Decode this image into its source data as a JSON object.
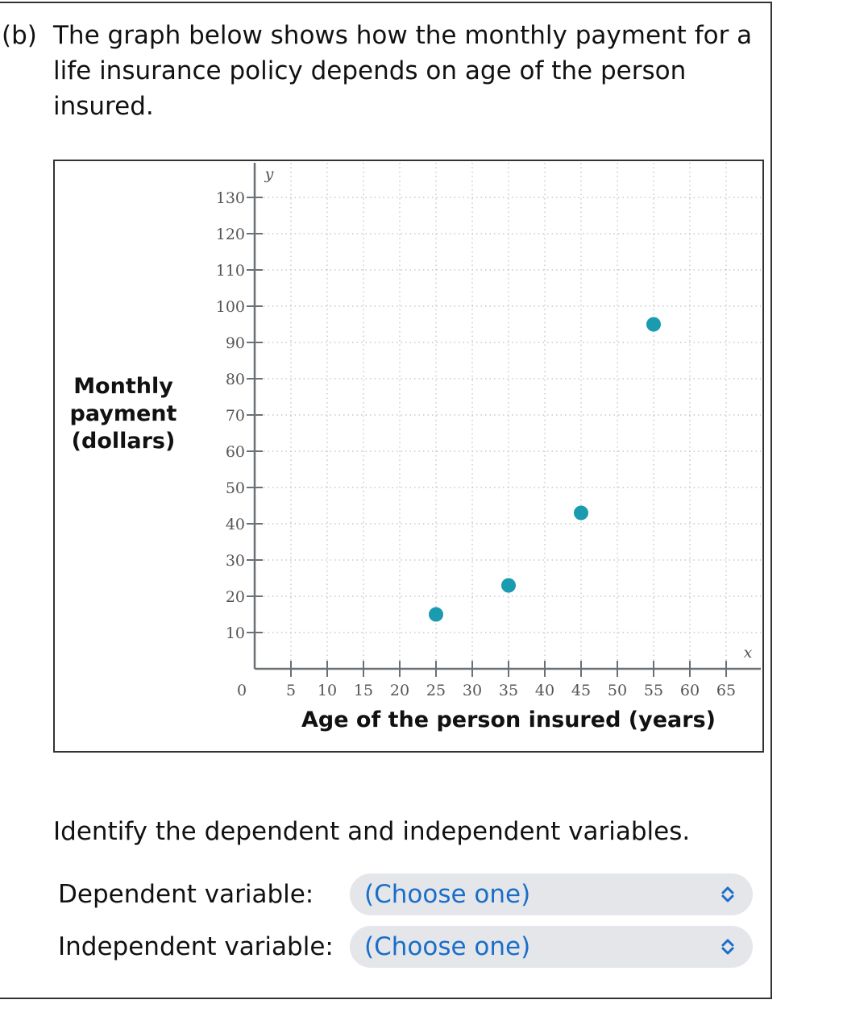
{
  "question": {
    "label": "(b)",
    "text": "The graph below shows how the monthly payment for a life insurance policy depends on age of the person insured."
  },
  "chart_data": {
    "type": "scatter",
    "xlabel": "Age of the person insured (years)",
    "ylabel": "Monthly payment (dollars)",
    "x_axis_var": "x",
    "y_axis_var": "y",
    "origin_label": "0",
    "xlim": [
      0,
      67
    ],
    "ylim": [
      0,
      135
    ],
    "x_ticks": [
      5,
      10,
      15,
      20,
      25,
      30,
      35,
      40,
      45,
      50,
      55,
      60,
      65
    ],
    "y_ticks": [
      10,
      20,
      30,
      40,
      50,
      60,
      70,
      80,
      90,
      100,
      110,
      120,
      130
    ],
    "grid": true,
    "point_color": "#1a9bb0",
    "points": [
      {
        "x": 25,
        "y": 15
      },
      {
        "x": 35,
        "y": 23
      },
      {
        "x": 45,
        "y": 43
      },
      {
        "x": 55,
        "y": 95
      }
    ]
  },
  "prompt": "Identify the dependent and independent variables.",
  "dependent": {
    "label": "Dependent variable:",
    "value": "(Choose one)"
  },
  "independent": {
    "label": "Independent variable:",
    "value": "(Choose one)"
  },
  "colors": {
    "select_bg": "#e4e6ea",
    "select_text": "#1a6ec9"
  }
}
